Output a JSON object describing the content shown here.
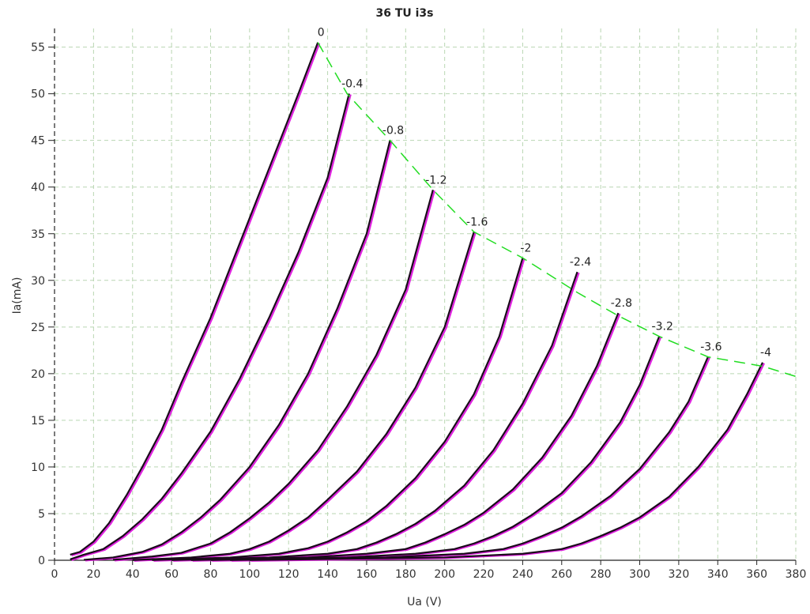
{
  "chart_data": {
    "type": "line",
    "title": "36 TU i3s",
    "xlabel": "Ua (V)",
    "ylabel": "Ia(mA)",
    "xlim": [
      0,
      380
    ],
    "ylim": [
      0,
      57
    ],
    "x_ticks": [
      0,
      20,
      40,
      60,
      80,
      100,
      120,
      140,
      160,
      180,
      200,
      220,
      240,
      260,
      280,
      300,
      320,
      340,
      360,
      380
    ],
    "y_ticks": [
      0,
      5,
      10,
      15,
      20,
      25,
      30,
      35,
      40,
      45,
      50,
      55
    ],
    "grid": true,
    "series": [
      {
        "name": "0",
        "color": "#1a0a1a",
        "x": [
          8,
          13,
          20,
          28,
          37,
          45,
          55,
          65,
          80,
          95,
          110,
          125,
          135
        ],
        "y": [
          0.6,
          0.9,
          2,
          4,
          7,
          10,
          14,
          19,
          26,
          34,
          42,
          50,
          55.5
        ]
      },
      {
        "name": "-0.4",
        "color": "#1a0a1a",
        "x": [
          8,
          15,
          25,
          35,
          45,
          55,
          65,
          80,
          95,
          110,
          125,
          140,
          151
        ],
        "y": [
          0.1,
          0.6,
          1.2,
          2.6,
          4.4,
          6.6,
          9.3,
          13.8,
          19.5,
          26,
          33,
          41,
          50
        ]
      },
      {
        "name": "-0.8",
        "color": "#1a0a1a",
        "x": [
          15,
          30,
          45,
          55,
          65,
          75,
          85,
          100,
          115,
          130,
          145,
          160,
          172
        ],
        "y": [
          0.05,
          0.3,
          0.9,
          1.7,
          3,
          4.6,
          6.5,
          10,
          14.5,
          20,
          27,
          35,
          45
        ]
      },
      {
        "name": "-1.2",
        "color": "#1a0a1a",
        "x": [
          30,
          50,
          65,
          80,
          90,
          100,
          110,
          120,
          135,
          150,
          165,
          180,
          194
        ],
        "y": [
          0.05,
          0.4,
          0.8,
          1.8,
          3,
          4.5,
          6.2,
          8.2,
          11.8,
          16.5,
          22,
          29,
          39.7
        ]
      },
      {
        "name": "-1.6",
        "color": "#1a0a1a",
        "x": [
          40,
          70,
          90,
          100,
          110,
          120,
          130,
          140,
          155,
          170,
          185,
          200,
          215
        ],
        "y": [
          0.02,
          0.3,
          0.7,
          1.2,
          2,
          3.2,
          4.6,
          6.5,
          9.5,
          13.5,
          18.5,
          25,
          35.2
        ]
      },
      {
        "name": "-2",
        "color": "#1a0a1a",
        "x": [
          50,
          90,
          115,
          130,
          140,
          150,
          160,
          170,
          185,
          200,
          215,
          228,
          240
        ],
        "y": [
          0.02,
          0.3,
          0.7,
          1.3,
          2,
          3,
          4.2,
          5.8,
          8.8,
          12.7,
          17.8,
          24,
          32.4
        ]
      },
      {
        "name": "-2.4",
        "color": "#1a0a1a",
        "x": [
          60,
          110,
          140,
          155,
          165,
          175,
          185,
          195,
          210,
          225,
          240,
          255,
          268
        ],
        "y": [
          0.02,
          0.3,
          0.7,
          1.2,
          1.9,
          2.8,
          3.9,
          5.3,
          8,
          11.8,
          16.8,
          23,
          30.9
        ]
      },
      {
        "name": "-2.8",
        "color": "#1a0a1a",
        "x": [
          70,
          130,
          160,
          180,
          190,
          200,
          210,
          220,
          235,
          250,
          265,
          278,
          289
        ],
        "y": [
          0.02,
          0.3,
          0.7,
          1.2,
          1.9,
          2.8,
          3.8,
          5.1,
          7.6,
          11,
          15.5,
          20.8,
          26.5
        ]
      },
      {
        "name": "-3.2",
        "color": "#1a0a1a",
        "x": [
          80,
          150,
          185,
          205,
          215,
          225,
          235,
          245,
          260,
          275,
          290,
          300,
          310
        ],
        "y": [
          0.02,
          0.3,
          0.7,
          1.2,
          1.8,
          2.6,
          3.6,
          4.9,
          7.2,
          10.5,
          14.8,
          18.8,
          24
        ]
      },
      {
        "name": "-3.6",
        "color": "#1a0a1a",
        "x": [
          90,
          170,
          210,
          230,
          240,
          250,
          260,
          270,
          285,
          300,
          315,
          325,
          335
        ],
        "y": [
          0.02,
          0.3,
          0.7,
          1.2,
          1.8,
          2.6,
          3.5,
          4.7,
          6.9,
          9.8,
          13.7,
          17,
          21.8
        ]
      },
      {
        "name": "-4",
        "color": "#1a0a1a",
        "x": [
          100,
          200,
          240,
          260,
          270,
          280,
          290,
          300,
          315,
          330,
          345,
          355,
          363
        ],
        "y": [
          0.02,
          0.3,
          0.7,
          1.2,
          1.8,
          2.6,
          3.5,
          4.6,
          6.8,
          10,
          14,
          17.8,
          21.2
        ]
      }
    ],
    "max_dissipation_curve": {
      "color": "#22dd22",
      "x": [
        135,
        150,
        172,
        194,
        215,
        240,
        268,
        289,
        310,
        335,
        363,
        380
      ],
      "y": [
        55.5,
        50,
        45,
        39.7,
        35.2,
        32.4,
        28.7,
        26.2,
        24,
        21.8,
        20.8,
        19.7
      ]
    }
  }
}
